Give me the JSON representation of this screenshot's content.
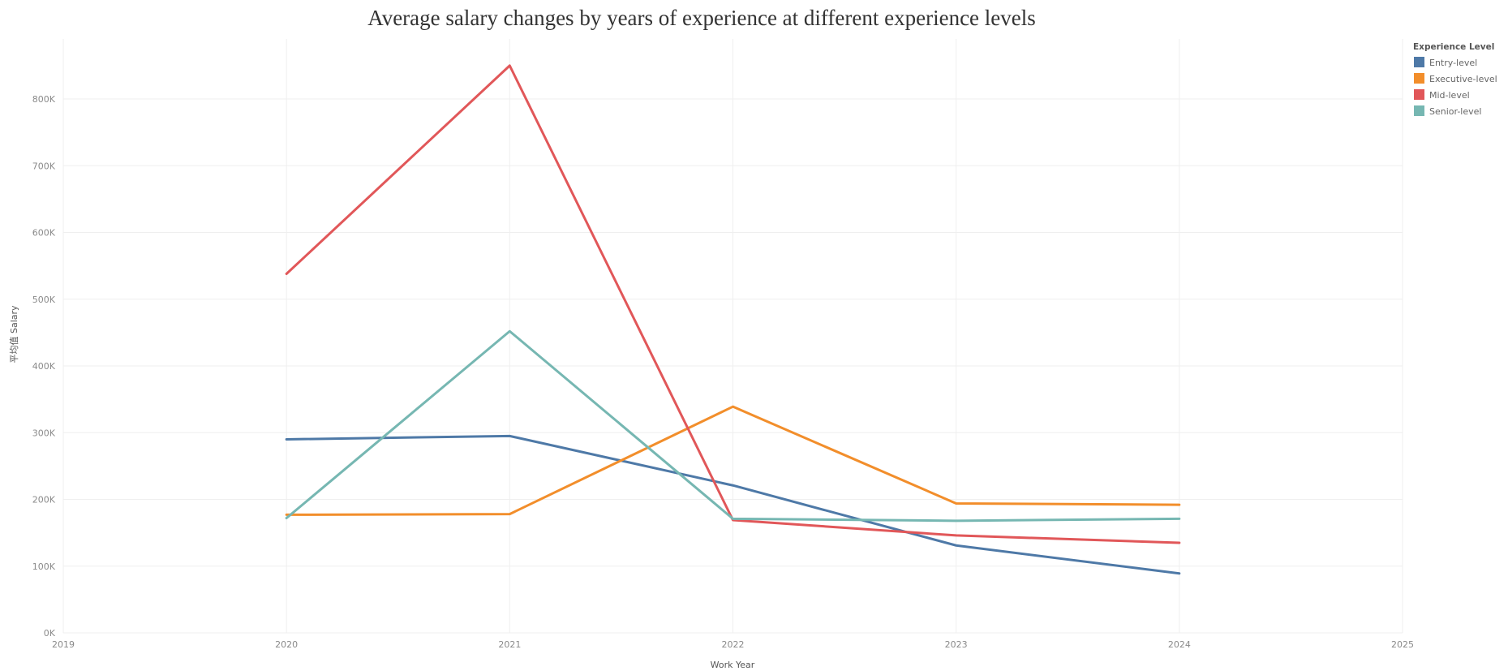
{
  "chart_data": {
    "type": "line",
    "title": "Average salary changes by years of experience at different experience levels",
    "xlabel": "Work Year",
    "ylabel": "平均值 Salary",
    "x_ticks": [
      "2019",
      "2020",
      "2021",
      "2022",
      "2023",
      "2024",
      "2025"
    ],
    "xlim": [
      2019,
      2025
    ],
    "y_ticks": [
      "0K",
      "100K",
      "200K",
      "300K",
      "400K",
      "500K",
      "600K",
      "700K",
      "800K"
    ],
    "ylim": [
      0,
      890000
    ],
    "grid": true,
    "legend": {
      "title": "Experience Level",
      "placement": "top-right"
    },
    "x": [
      2020,
      2021,
      2022,
      2023,
      2024
    ],
    "series": [
      {
        "name": "Entry-level",
        "color": "#4e79a7",
        "values": [
          290000,
          295000,
          221000,
          131000,
          89000
        ]
      },
      {
        "name": "Executive-level",
        "color": "#f28e2b",
        "values": [
          177000,
          178000,
          339000,
          194000,
          192000
        ]
      },
      {
        "name": "Mid-level",
        "color": "#e15759",
        "values": [
          538000,
          850000,
          169000,
          146000,
          135000
        ]
      },
      {
        "name": "Senior-level",
        "color": "#76b7b2",
        "values": [
          172000,
          452000,
          171000,
          168000,
          171000
        ]
      }
    ]
  }
}
